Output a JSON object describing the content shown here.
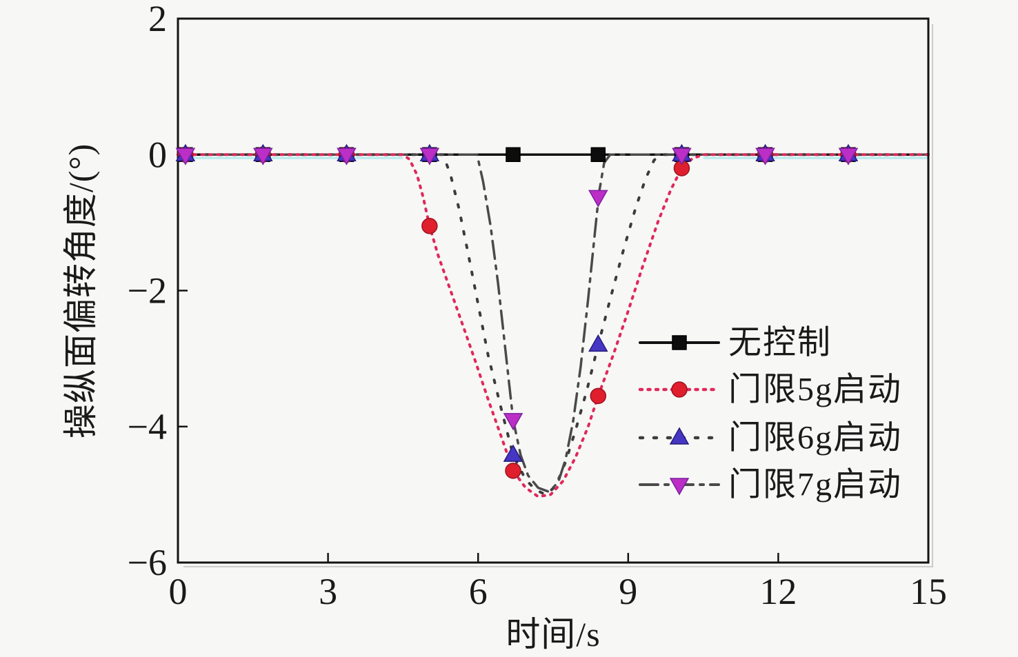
{
  "chart_data": {
    "type": "line",
    "title": "",
    "xlabel": "时间/s",
    "ylabel": "操纵面偏转角度/(°)",
    "xlim": [
      0,
      15
    ],
    "ylim": [
      -6,
      2
    ],
    "xticks": [
      0,
      3,
      6,
      9,
      12,
      15
    ],
    "yticks": [
      2,
      0,
      -2,
      -4,
      -6
    ],
    "grid": false,
    "legend_position": "center-right-inside",
    "background_color": "#f7f7f5",
    "axis_color": "#141414",
    "text_color": "#1a1a1a",
    "series": [
      {
        "name": "无控制",
        "line_color": "#111111",
        "line_style": "solid",
        "line_width": 3.5,
        "z": 0,
        "marker_shape": "square",
        "marker_color": "#0d0d0d",
        "marker_edge_color": "#000000",
        "points": [
          [
            0,
            0
          ],
          [
            15,
            0
          ]
        ],
        "markers": [
          [
            0.15,
            0
          ],
          [
            1.7,
            0
          ],
          [
            3.37,
            0
          ],
          [
            5.03,
            0
          ],
          [
            6.7,
            0
          ],
          [
            8.4,
            0
          ],
          [
            10.07,
            0
          ],
          [
            11.74,
            0
          ],
          [
            13.4,
            0
          ]
        ]
      },
      {
        "name": "门限5g启动",
        "line_color": "#e0285a",
        "line_style": "dotted",
        "line_width": 4,
        "z": 3,
        "marker_shape": "circle",
        "marker_color": "#df1f2d",
        "marker_edge_color": "#9c1120",
        "points": [
          [
            0,
            0
          ],
          [
            4.5,
            0
          ],
          [
            4.63,
            -0.07
          ],
          [
            4.78,
            -0.3
          ],
          [
            4.9,
            -0.62
          ],
          [
            5.03,
            -1.05
          ],
          [
            5.2,
            -1.48
          ],
          [
            5.45,
            -2.0
          ],
          [
            5.7,
            -2.52
          ],
          [
            5.95,
            -3.05
          ],
          [
            6.2,
            -3.6
          ],
          [
            6.45,
            -4.12
          ],
          [
            6.7,
            -4.65
          ],
          [
            6.95,
            -4.9
          ],
          [
            7.2,
            -5.03
          ],
          [
            7.45,
            -5.0
          ],
          [
            7.7,
            -4.8
          ],
          [
            7.95,
            -4.45
          ],
          [
            8.2,
            -4.0
          ],
          [
            8.4,
            -3.55
          ],
          [
            8.7,
            -2.95
          ],
          [
            9.0,
            -2.3
          ],
          [
            9.3,
            -1.62
          ],
          [
            9.6,
            -0.98
          ],
          [
            9.85,
            -0.52
          ],
          [
            10.07,
            -0.2
          ],
          [
            10.28,
            -0.06
          ],
          [
            10.5,
            0
          ],
          [
            15,
            0
          ]
        ],
        "markers": [
          [
            0.15,
            0
          ],
          [
            1.7,
            0
          ],
          [
            3.37,
            0
          ],
          [
            5.03,
            -1.05
          ],
          [
            6.7,
            -4.65
          ],
          [
            8.4,
            -3.55
          ],
          [
            10.07,
            -0.2
          ],
          [
            11.74,
            0
          ],
          [
            13.4,
            0
          ]
        ]
      },
      {
        "name": "门限6g启动",
        "line_color": "#3c3c3c",
        "line_style": "sparse-dot",
        "line_width": 4,
        "z": 1,
        "marker_shape": "triangle-up",
        "marker_color": "#4636c4",
        "marker_edge_color": "#241b7a",
        "points": [
          [
            0,
            0
          ],
          [
            5.3,
            0
          ],
          [
            5.45,
            -0.3
          ],
          [
            5.62,
            -0.8
          ],
          [
            5.8,
            -1.45
          ],
          [
            6.0,
            -2.2
          ],
          [
            6.2,
            -2.95
          ],
          [
            6.45,
            -3.7
          ],
          [
            6.7,
            -4.42
          ],
          [
            6.95,
            -4.78
          ],
          [
            7.15,
            -4.93
          ],
          [
            7.35,
            -5.0
          ],
          [
            7.55,
            -4.88
          ],
          [
            7.75,
            -4.52
          ],
          [
            7.95,
            -4.05
          ],
          [
            8.18,
            -3.45
          ],
          [
            8.4,
            -2.8
          ],
          [
            8.65,
            -2.1
          ],
          [
            8.9,
            -1.42
          ],
          [
            9.15,
            -0.78
          ],
          [
            9.35,
            -0.35
          ],
          [
            9.52,
            -0.08
          ],
          [
            9.68,
            0
          ],
          [
            15,
            0
          ]
        ],
        "markers": [
          [
            0.15,
            0
          ],
          [
            1.7,
            0
          ],
          [
            3.37,
            0
          ],
          [
            5.03,
            0
          ],
          [
            6.7,
            -4.42
          ],
          [
            8.4,
            -2.8
          ],
          [
            10.07,
            0
          ],
          [
            11.74,
            0
          ],
          [
            13.4,
            0
          ]
        ]
      },
      {
        "name": "门限7g启动",
        "line_color": "#4a4a4a",
        "line_style": "dash-dot",
        "line_width": 3.5,
        "z": 2,
        "marker_shape": "triangle-down",
        "marker_color": "#bb2fc6",
        "marker_edge_color": "#7b1f9e",
        "points": [
          [
            0,
            0
          ],
          [
            5.98,
            0
          ],
          [
            6.1,
            -0.4
          ],
          [
            6.25,
            -1.05
          ],
          [
            6.4,
            -1.9
          ],
          [
            6.55,
            -2.9
          ],
          [
            6.7,
            -3.9
          ],
          [
            6.85,
            -4.42
          ],
          [
            7.0,
            -4.72
          ],
          [
            7.2,
            -4.9
          ],
          [
            7.42,
            -4.96
          ],
          [
            7.6,
            -4.82
          ],
          [
            7.75,
            -4.48
          ],
          [
            7.9,
            -3.92
          ],
          [
            8.05,
            -3.12
          ],
          [
            8.2,
            -2.12
          ],
          [
            8.32,
            -1.25
          ],
          [
            8.42,
            -0.55
          ],
          [
            8.52,
            -0.12
          ],
          [
            8.64,
            0
          ],
          [
            15,
            0
          ]
        ],
        "markers": [
          [
            0.15,
            0
          ],
          [
            1.7,
            0
          ],
          [
            3.37,
            0
          ],
          [
            5.03,
            0
          ],
          [
            6.7,
            -3.9
          ],
          [
            8.4,
            -0.62
          ],
          [
            10.07,
            0
          ],
          [
            11.74,
            0
          ],
          [
            13.4,
            0
          ]
        ]
      }
    ],
    "zero_line_artifact": {
      "color": "#bdecef",
      "segments": [
        [
          0,
          4.5
        ],
        [
          10.5,
          15
        ]
      ]
    }
  }
}
